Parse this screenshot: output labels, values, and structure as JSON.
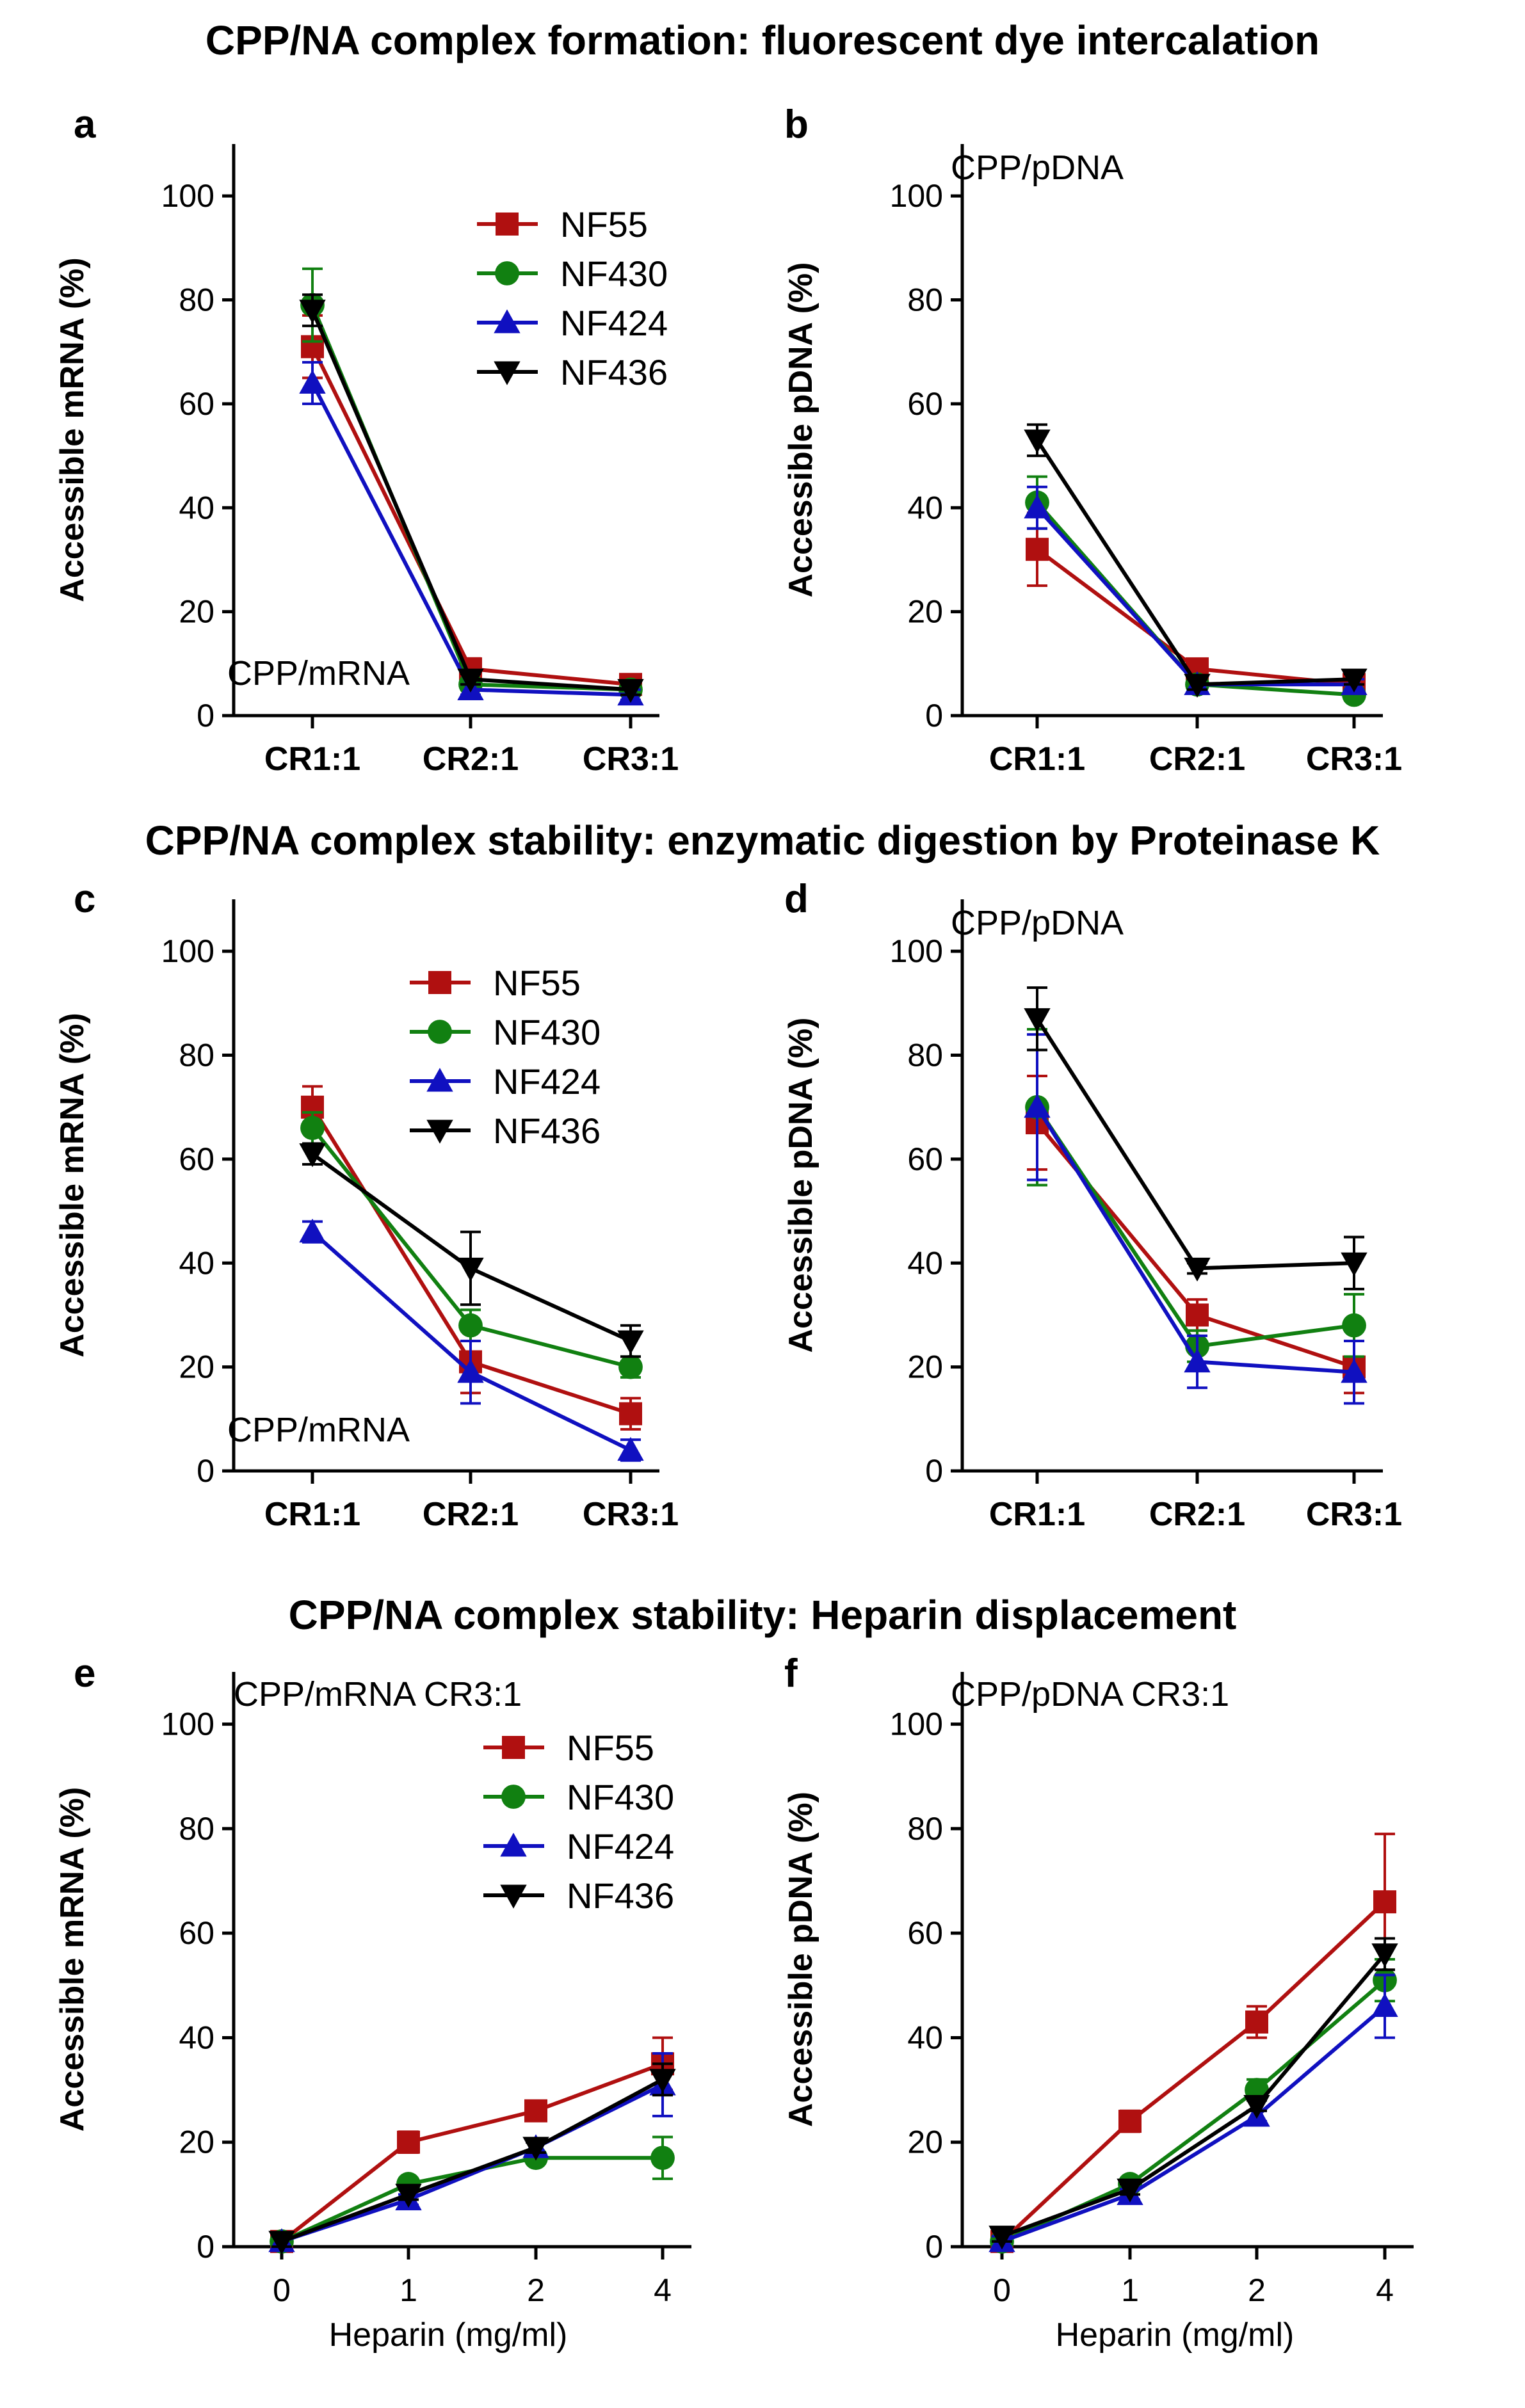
{
  "sections": [
    {
      "title": "CPP/NA complex formation: fluorescent dye intercalation"
    },
    {
      "title": "CPP/NA complex stability: enzymatic digestion by Proteinase K"
    },
    {
      "title": "CPP/NA complex stability: Heparin displacement"
    }
  ],
  "series_styles": {
    "NF55": {
      "color": "#b01010",
      "marker": "square"
    },
    "NF430": {
      "color": "#118011",
      "marker": "circle"
    },
    "NF424": {
      "color": "#1010c0",
      "marker": "triangle-up"
    },
    "NF436": {
      "color": "#000000",
      "marker": "triangle-down"
    }
  },
  "chart_data": [
    {
      "panel": "a",
      "type": "line",
      "categories": [
        "CR1:1",
        "CR2:1",
        "CR3:1"
      ],
      "ylabel": "Accessible mRNA (%)",
      "xlabel": "",
      "ylim": [
        0,
        110
      ],
      "yticks": [
        0,
        20,
        40,
        60,
        80,
        100
      ],
      "annotation": "CPP/mRNA",
      "legend": true,
      "series": [
        {
          "name": "NF55",
          "values": [
            71,
            9,
            6
          ],
          "errors": [
            6,
            2,
            1
          ]
        },
        {
          "name": "NF430",
          "values": [
            79,
            6,
            5
          ],
          "errors": [
            7,
            1,
            1
          ]
        },
        {
          "name": "NF424",
          "values": [
            64,
            5,
            4
          ],
          "errors": [
            4,
            1,
            1
          ]
        },
        {
          "name": "NF436",
          "values": [
            78,
            7,
            5
          ],
          "errors": [
            3,
            1,
            1
          ]
        }
      ]
    },
    {
      "panel": "b",
      "type": "line",
      "categories": [
        "CR1:1",
        "CR2:1",
        "CR3:1"
      ],
      "ylabel": "Accessible pDNA (%)",
      "xlabel": "",
      "ylim": [
        0,
        110
      ],
      "yticks": [
        0,
        20,
        40,
        60,
        80,
        100
      ],
      "annotation": "CPP/pDNA",
      "legend": false,
      "series": [
        {
          "name": "NF55",
          "values": [
            32,
            9,
            6
          ],
          "errors": [
            7,
            1,
            1
          ]
        },
        {
          "name": "NF430",
          "values": [
            41,
            6,
            4
          ],
          "errors": [
            5,
            1,
            1
          ]
        },
        {
          "name": "NF424",
          "values": [
            40,
            6,
            6
          ],
          "errors": [
            4,
            1,
            1
          ]
        },
        {
          "name": "NF436",
          "values": [
            53,
            6,
            7
          ],
          "errors": [
            3,
            1,
            1
          ]
        }
      ]
    },
    {
      "panel": "c",
      "type": "line",
      "categories": [
        "CR1:1",
        "CR2:1",
        "CR3:1"
      ],
      "ylabel": "Accessible mRNA (%)",
      "xlabel": "",
      "ylim": [
        0,
        110
      ],
      "yticks": [
        0,
        20,
        40,
        60,
        80,
        100
      ],
      "annotation": "CPP/mRNA",
      "legend": true,
      "series": [
        {
          "name": "NF55",
          "values": [
            70,
            21,
            11
          ],
          "errors": [
            4,
            6,
            3
          ]
        },
        {
          "name": "NF430",
          "values": [
            66,
            28,
            20
          ],
          "errors": [
            3,
            3,
            2
          ]
        },
        {
          "name": "NF424",
          "values": [
            46,
            19,
            4
          ],
          "errors": [
            2,
            6,
            2
          ]
        },
        {
          "name": "NF436",
          "values": [
            61,
            39,
            25
          ],
          "errors": [
            2,
            7,
            3
          ]
        }
      ]
    },
    {
      "panel": "d",
      "type": "line",
      "categories": [
        "CR1:1",
        "CR2:1",
        "CR3:1"
      ],
      "ylabel": "Accessible pDNA (%)",
      "xlabel": "",
      "ylim": [
        0,
        110
      ],
      "yticks": [
        0,
        20,
        40,
        60,
        80,
        100
      ],
      "annotation": "CPP/pDNA",
      "legend": false,
      "series": [
        {
          "name": "NF55",
          "values": [
            67,
            30,
            20
          ],
          "errors": [
            9,
            3,
            5
          ]
        },
        {
          "name": "NF430",
          "values": [
            70,
            24,
            28
          ],
          "errors": [
            15,
            3,
            6
          ]
        },
        {
          "name": "NF424",
          "values": [
            70,
            21,
            19
          ],
          "errors": [
            14,
            5,
            6
          ]
        },
        {
          "name": "NF436",
          "values": [
            87,
            39,
            40
          ],
          "errors": [
            6,
            1,
            5
          ]
        }
      ]
    },
    {
      "panel": "e",
      "type": "line",
      "categories": [
        "0",
        "1",
        "2",
        "4"
      ],
      "ylabel": "Accessible mRNA (%)",
      "xlabel": "Heparin (mg/ml)",
      "ylim": [
        0,
        110
      ],
      "yticks": [
        0,
        20,
        40,
        60,
        80,
        100
      ],
      "annotation": "CPP/mRNA CR3:1",
      "legend": true,
      "series": [
        {
          "name": "NF55",
          "values": [
            1,
            20,
            26,
            35
          ],
          "errors": [
            1,
            2,
            1,
            5
          ]
        },
        {
          "name": "NF430",
          "values": [
            1,
            12,
            17,
            17
          ],
          "errors": [
            1,
            1,
            1,
            4
          ]
        },
        {
          "name": "NF424",
          "values": [
            1,
            9,
            19,
            31
          ],
          "errors": [
            1,
            1,
            1,
            6
          ]
        },
        {
          "name": "NF436",
          "values": [
            1,
            10,
            19,
            32
          ],
          "errors": [
            1,
            1,
            1,
            3
          ]
        }
      ]
    },
    {
      "panel": "f",
      "type": "line",
      "categories": [
        "0",
        "1",
        "2",
        "4"
      ],
      "ylabel": "Accessible pDNA (%)",
      "xlabel": "Heparin (mg/ml)",
      "ylim": [
        0,
        110
      ],
      "yticks": [
        0,
        20,
        40,
        60,
        80,
        100
      ],
      "annotation": "CPP/pDNA CR3:1",
      "legend": false,
      "series": [
        {
          "name": "NF55",
          "values": [
            1,
            24,
            43,
            66
          ],
          "errors": [
            1,
            2,
            3,
            13
          ]
        },
        {
          "name": "NF430",
          "values": [
            1,
            12,
            30,
            51
          ],
          "errors": [
            1,
            1,
            2,
            4
          ]
        },
        {
          "name": "NF424",
          "values": [
            1,
            10,
            25,
            46
          ],
          "errors": [
            1,
            1,
            1,
            6
          ]
        },
        {
          "name": "NF436",
          "values": [
            2,
            11,
            27,
            56
          ],
          "errors": [
            1,
            1,
            1,
            3
          ]
        }
      ]
    }
  ]
}
